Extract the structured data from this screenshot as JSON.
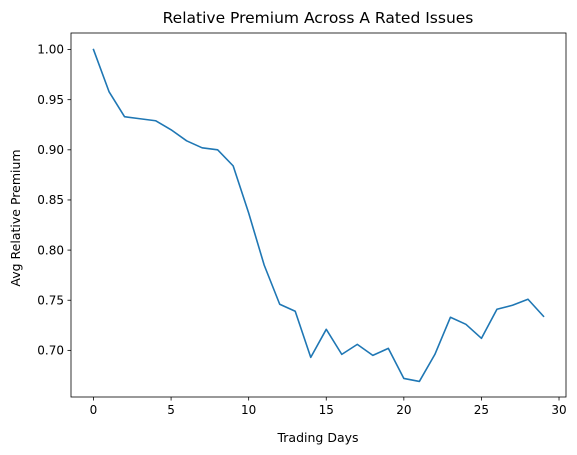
{
  "chart_data": {
    "type": "line",
    "title": "Relative Premium Across A Rated Issues",
    "xlabel": "Trading Days",
    "ylabel": "Avg Relative Premium",
    "xlim": [
      -1.45,
      30.45
    ],
    "ylim": [
      0.6535,
      1.0165
    ],
    "xticks": [
      0,
      5,
      10,
      15,
      20,
      25,
      30
    ],
    "xtick_labels": [
      "0",
      "5",
      "10",
      "15",
      "20",
      "25",
      "30"
    ],
    "yticks": [
      0.7,
      0.75,
      0.8,
      0.85,
      0.9,
      0.95,
      1.0
    ],
    "ytick_labels": [
      "0.70",
      "0.75",
      "0.80",
      "0.85",
      "0.90",
      "0.95",
      "1.00"
    ],
    "grid": false,
    "series": [
      {
        "color": "#1f77b4",
        "x": [
          0,
          1,
          2,
          3,
          4,
          5,
          6,
          7,
          8,
          9,
          10,
          11,
          12,
          13,
          14,
          15,
          16,
          17,
          18,
          19,
          20,
          21,
          22,
          23,
          24,
          25,
          26,
          27,
          28,
          29
        ],
        "y": [
          1.0,
          0.958,
          0.933,
          0.931,
          0.929,
          0.92,
          0.909,
          0.902,
          0.9,
          0.884,
          0.837,
          0.785,
          0.746,
          0.739,
          0.693,
          0.721,
          0.696,
          0.706,
          0.695,
          0.702,
          0.672,
          0.669,
          0.696,
          0.733,
          0.726,
          0.712,
          0.741,
          0.745,
          0.751,
          0.734
        ]
      }
    ]
  }
}
